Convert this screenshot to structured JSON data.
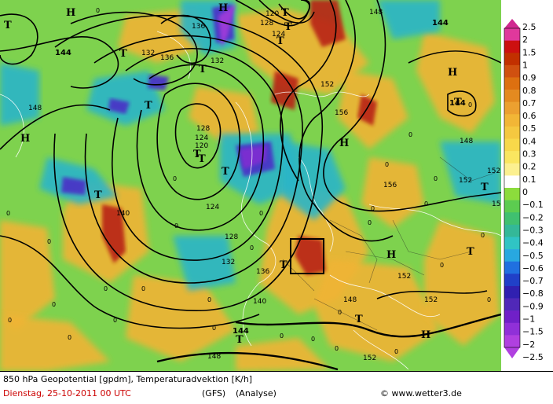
{
  "footer": {
    "line1": "850 hPa Geopotential [gpdm], Temperaturadvektion [K/h]",
    "date": "Dienstag, 25-10-2011  00 UTC",
    "model": "(GFS)",
    "analysis": "(Analyse)",
    "copyright": "© www.wetter3.de"
  },
  "legend": {
    "values": [
      "2.5",
      "2",
      "1.5",
      "1",
      "0.9",
      "0.8",
      "0.7",
      "0.6",
      "0.5",
      "0.4",
      "0.3",
      "0.2",
      "0.1",
      "0",
      "−0.1",
      "−0.2",
      "−0.3",
      "−0.4",
      "−0.5",
      "−0.6",
      "−0.7",
      "−0.8",
      "−0.9",
      "−1",
      "−1.5",
      "−2",
      "−2.5"
    ],
    "colors": [
      "#e0389c",
      "#cc1010",
      "#c23000",
      "#d05010",
      "#dd7010",
      "#e48a20",
      "#eca030",
      "#f2b636",
      "#f5c840",
      "#f8d84a",
      "#fae660",
      "#fcf090",
      "#ffffff",
      "#8cdc3c",
      "#5ccc50",
      "#40c070",
      "#34b898",
      "#30c4c4",
      "#28a8e0",
      "#2070e0",
      "#2040c8",
      "#3020b0",
      "#5028b8",
      "#7020c8",
      "#9030d8",
      "#b040e0"
    ],
    "arrow_top_color": "#d02890",
    "arrow_bottom_color": "#b040e0"
  },
  "map": {
    "base_color": "#7ed24e",
    "warm_color": "#f0b434",
    "cold_color": "#2bb5c8",
    "labels": [
      {
        "t": "T",
        "k": "th"
      },
      {
        "t": "H",
        "k": "th"
      },
      {
        "t": "T",
        "k": "th"
      },
      {
        "t": "T",
        "k": "th"
      },
      {
        "t": "T",
        "k": "th"
      },
      {
        "t": "T",
        "k": "th"
      },
      {
        "t": "T",
        "k": "th"
      },
      {
        "t": "T",
        "k": "th"
      },
      {
        "t": "T",
        "k": "th"
      },
      {
        "t": "T",
        "k": "th"
      },
      {
        "t": "T",
        "k": "th"
      },
      {
        "t": "T",
        "k": "th"
      },
      {
        "t": "T",
        "k": "th"
      },
      {
        "t": "H",
        "k": "th"
      },
      {
        "t": "H",
        "k": "th"
      },
      {
        "t": "H",
        "k": "th"
      },
      {
        "t": "H",
        "k": "th"
      },
      {
        "t": "H",
        "k": "th"
      },
      {
        "t": "H",
        "k": "th"
      },
      {
        "t": "T",
        "k": "th"
      },
      {
        "t": "T",
        "k": "th"
      },
      {
        "t": "T",
        "k": "th"
      },
      {
        "t": "T",
        "k": "th"
      },
      {
        "t": "T",
        "k": "th"
      },
      {
        "t": "144",
        "k": "lblb"
      },
      {
        "t": "144",
        "k": "lblb"
      },
      {
        "t": "144",
        "k": "lblb"
      },
      {
        "t": "144",
        "k": "lblb"
      },
      {
        "t": "148",
        "k": "lbl"
      },
      {
        "t": "148",
        "k": "lbl"
      },
      {
        "t": "148",
        "k": "lbl"
      },
      {
        "t": "148",
        "k": "lbl"
      },
      {
        "t": "148",
        "k": "lbl"
      },
      {
        "t": "136",
        "k": "lbl"
      },
      {
        "t": "136",
        "k": "lbl"
      },
      {
        "t": "136",
        "k": "lbl"
      },
      {
        "t": "132",
        "k": "lbl"
      },
      {
        "t": "132",
        "k": "lbl"
      },
      {
        "t": "132",
        "k": "lbl"
      },
      {
        "t": "128",
        "k": "lbl"
      },
      {
        "t": "128",
        "k": "lbl"
      },
      {
        "t": "128",
        "k": "lbl"
      },
      {
        "t": "124",
        "k": "lbl"
      },
      {
        "t": "124",
        "k": "lbl"
      },
      {
        "t": "124",
        "k": "lbl"
      },
      {
        "t": "120",
        "k": "lbl"
      },
      {
        "t": "120",
        "k": "lbl"
      },
      {
        "t": "140",
        "k": "lbl"
      },
      {
        "t": "140",
        "k": "lbl"
      },
      {
        "t": "152",
        "k": "lbl"
      },
      {
        "t": "152",
        "k": "lbl"
      },
      {
        "t": "152",
        "k": "lbl"
      },
      {
        "t": "152",
        "k": "lbl"
      },
      {
        "t": "152",
        "k": "lbl"
      },
      {
        "t": "152",
        "k": "lbl"
      },
      {
        "t": "152",
        "k": "lbl"
      },
      {
        "t": "156",
        "k": "lbl"
      },
      {
        "t": "156",
        "k": "lbl"
      },
      {
        "t": "0",
        "k": "z"
      },
      {
        "t": "0",
        "k": "z"
      },
      {
        "t": "0",
        "k": "z"
      },
      {
        "t": "0",
        "k": "z"
      },
      {
        "t": "0",
        "k": "z"
      },
      {
        "t": "0",
        "k": "z"
      },
      {
        "t": "0",
        "k": "z"
      },
      {
        "t": "0",
        "k": "z"
      },
      {
        "t": "0",
        "k": "z"
      },
      {
        "t": "0",
        "k": "z"
      },
      {
        "t": "0",
        "k": "z"
      },
      {
        "t": "0",
        "k": "z"
      },
      {
        "t": "0",
        "k": "z"
      },
      {
        "t": "0",
        "k": "z"
      },
      {
        "t": "0",
        "k": "z"
      },
      {
        "t": "0",
        "k": "z"
      },
      {
        "t": "0",
        "k": "z"
      },
      {
        "t": "0",
        "k": "z"
      },
      {
        "t": "0",
        "k": "z"
      },
      {
        "t": "0",
        "k": "z"
      },
      {
        "t": "0",
        "k": "z"
      },
      {
        "t": "0",
        "k": "z"
      },
      {
        "t": "0",
        "k": "z"
      },
      {
        "t": "0",
        "k": "z"
      },
      {
        "t": "0",
        "k": "z"
      },
      {
        "t": "0",
        "k": "z"
      },
      {
        "t": "0",
        "k": "z"
      },
      {
        "t": "0",
        "k": "z"
      },
      {
        "t": "0",
        "k": "z"
      },
      {
        "t": "0",
        "k": "z"
      }
    ]
  }
}
